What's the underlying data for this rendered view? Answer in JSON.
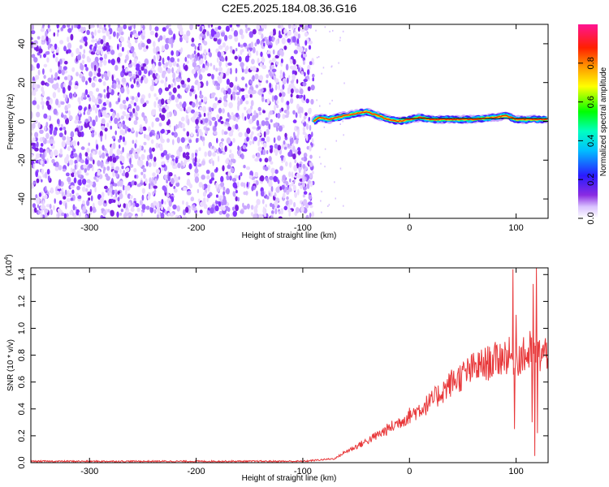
{
  "title": "C2E5.2025.184.08.36.G16",
  "chart_data": [
    {
      "type": "heatmap",
      "xlabel": "Height of straight line (km)",
      "ylabel": "Frequency (Hz)",
      "xlim": [
        -355,
        130
      ],
      "ylim": [
        -50,
        50
      ],
      "x_ticks": [
        -300,
        -200,
        -100,
        0,
        100
      ],
      "y_ticks": [
        -40,
        -20,
        0,
        20,
        40
      ],
      "noise_region_x": [
        -355,
        -90
      ],
      "signal_curve": {
        "x": [
          -90,
          -85,
          -75,
          -60,
          -50,
          -40,
          -30,
          -20,
          -10,
          0,
          10,
          20,
          40,
          60,
          80,
          90,
          100,
          110,
          120,
          130
        ],
        "y": [
          0,
          2,
          1,
          3,
          4,
          5,
          3,
          1,
          0,
          1,
          2,
          1,
          1,
          1,
          2,
          3,
          1,
          1,
          1,
          1
        ]
      },
      "colorbar": {
        "label": "Normalized spectral amplitude",
        "lim": [
          0,
          1
        ],
        "ticks": [
          0.0,
          0.2,
          0.4,
          0.6,
          0.8
        ]
      }
    },
    {
      "type": "line",
      "xlabel": "Height of straight line (km)",
      "ylabel": "SNR (10 * v/v)",
      "multiplier": "(x10",
      "multiplier_exp": "4",
      "multiplier_close": ")",
      "xlim": [
        -355,
        130
      ],
      "ylim": [
        0,
        1.45
      ],
      "x_ticks": [
        -300,
        -200,
        -100,
        0,
        100
      ],
      "y_ticks": [
        "0.0",
        "0.2",
        "0.4",
        "0.6",
        "0.8",
        "1.0",
        "1.2",
        "1.4"
      ],
      "color": "#e8383a",
      "trend": {
        "x": [
          -355,
          -100,
          -70,
          -60,
          -40,
          -20,
          0,
          20,
          40,
          60,
          80,
          90,
          100,
          110,
          120,
          130
        ],
        "y": [
          0.01,
          0.01,
          0.03,
          0.08,
          0.16,
          0.25,
          0.35,
          0.45,
          0.6,
          0.7,
          0.76,
          0.8,
          0.78,
          0.8,
          0.8,
          0.82
        ]
      },
      "spikes": [
        {
          "x": 97,
          "y": 1.44
        },
        {
          "x": 98.5,
          "y": 0.25
        },
        {
          "x": 100,
          "y": 1.1
        },
        {
          "x": 116,
          "y": 1.33
        },
        {
          "x": 117.5,
          "y": 0.05
        },
        {
          "x": 119,
          "y": 1.45
        },
        {
          "x": 120,
          "y": 0.22
        },
        {
          "x": 113,
          "y": 0.98
        },
        {
          "x": 115,
          "y": 0.3
        }
      ]
    }
  ]
}
